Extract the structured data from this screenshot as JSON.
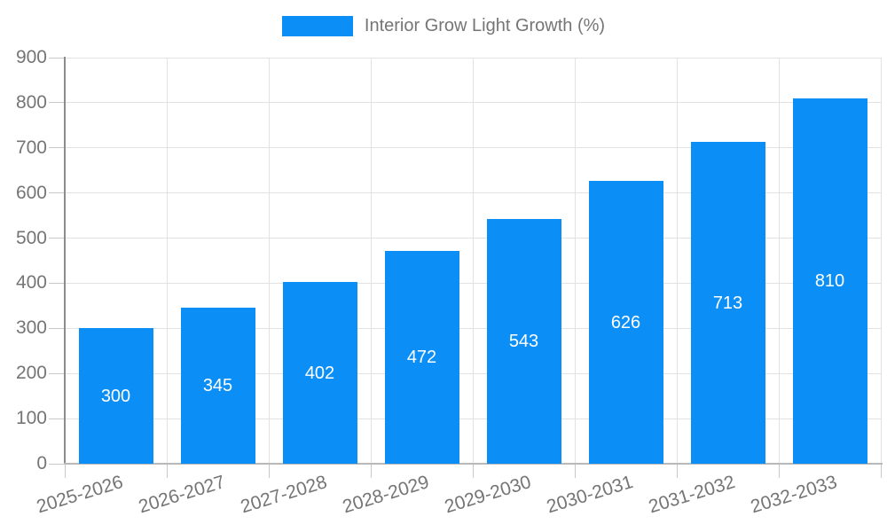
{
  "chart_data": {
    "type": "bar",
    "title": "Interior Grow Light Growth (%)",
    "categories": [
      "2025-2026",
      "2026-2027",
      "2027-2028",
      "2028-2029",
      "2029-2030",
      "2030-2031",
      "2031-2032",
      "2032-2033"
    ],
    "series": [
      {
        "name": "Interior Grow Light Growth (%)",
        "values": [
          300,
          345,
          402,
          472,
          543,
          626,
          713,
          810
        ]
      }
    ],
    "xlabel": "",
    "ylabel": "",
    "ylim": [
      0,
      900
    ],
    "ytick_step": 100,
    "yticks": [
      0,
      100,
      200,
      300,
      400,
      500,
      600,
      700,
      800,
      900
    ],
    "grid": true,
    "legend_position": "top",
    "value_labels": "inside-center",
    "x_tick_rotation_deg": -17
  },
  "colors": {
    "bar": "#0b8ff7",
    "grid": "#e2e2e2",
    "axis": "#8c8c8c",
    "baseline": "#b9b9b9",
    "tick": "#c9c9c9",
    "text": "#757575",
    "value_text": "#ffffff",
    "background": "#ffffff"
  }
}
